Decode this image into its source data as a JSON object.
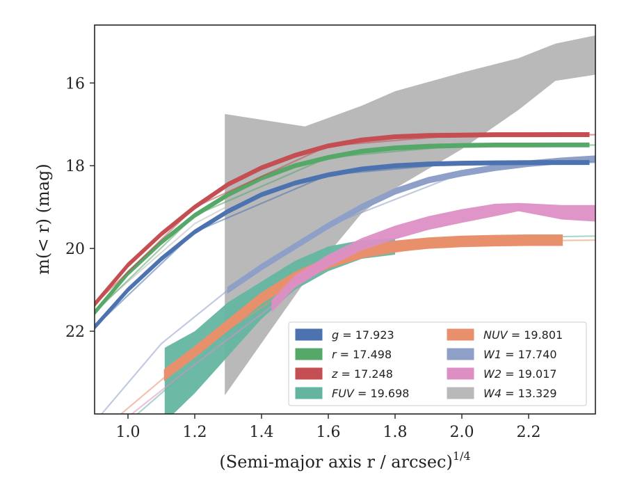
{
  "chart_data": {
    "type": "line",
    "xlabel": "(Semi-major axis r / arcsec)",
    "xlabel_sup": "1/4",
    "ylabel": "m(< r) (mag)",
    "xlim": [
      0.9,
      2.4
    ],
    "ylim": [
      24.0,
      14.6
    ],
    "y_inverted": true,
    "x_ticks": [
      1.0,
      1.2,
      1.4,
      1.6,
      1.8,
      2.0,
      2.2
    ],
    "x_tick_labels": [
      "1.0",
      "1.2",
      "1.4",
      "1.6",
      "1.8",
      "2.0",
      "2.2"
    ],
    "y_ticks": [
      16,
      18,
      20,
      22
    ],
    "y_tick_labels": [
      "16",
      "18",
      "20",
      "22"
    ],
    "legend_position": "lower-right",
    "series": [
      {
        "key": "g",
        "band": "g",
        "value_text": "= 17.923",
        "color": "#4c72b0",
        "x": [
          0.9,
          1.0,
          1.1,
          1.2,
          1.3,
          1.4,
          1.5,
          1.6,
          1.7,
          1.8,
          1.9,
          2.0,
          2.1,
          2.2,
          2.3,
          2.38
        ],
        "y": [
          21.9,
          21.0,
          20.25,
          19.6,
          19.1,
          18.7,
          18.42,
          18.22,
          18.08,
          18.0,
          17.96,
          17.94,
          17.93,
          17.925,
          17.923,
          17.923
        ],
        "model": [
          [
            0.9,
            21.9
          ],
          [
            1.2,
            19.6
          ],
          [
            1.6,
            18.22
          ],
          [
            2.0,
            17.94
          ],
          [
            2.4,
            17.92
          ]
        ],
        "band_width": 0.04
      },
      {
        "key": "r",
        "band": "r",
        "value_text": "= 17.498",
        "color": "#55a868",
        "x": [
          0.9,
          1.0,
          1.1,
          1.2,
          1.3,
          1.4,
          1.5,
          1.6,
          1.7,
          1.8,
          1.9,
          2.0,
          2.1,
          2.2,
          2.3,
          2.38
        ],
        "y": [
          21.55,
          20.6,
          19.85,
          19.2,
          18.7,
          18.3,
          18.0,
          17.8,
          17.65,
          17.57,
          17.53,
          17.51,
          17.5,
          17.5,
          17.498,
          17.498
        ],
        "model": [
          [
            0.9,
            21.55
          ],
          [
            1.2,
            19.2
          ],
          [
            1.6,
            17.8
          ],
          [
            2.0,
            17.51
          ],
          [
            2.4,
            17.5
          ]
        ],
        "band_width": 0.04
      },
      {
        "key": "z",
        "band": "z",
        "value_text": "= 17.248",
        "color": "#c44e52",
        "x": [
          0.9,
          1.0,
          1.1,
          1.2,
          1.3,
          1.4,
          1.5,
          1.6,
          1.7,
          1.8,
          1.9,
          2.0,
          2.1,
          2.2,
          2.3,
          2.38
        ],
        "y": [
          21.35,
          20.4,
          19.65,
          19.0,
          18.45,
          18.05,
          17.75,
          17.52,
          17.38,
          17.3,
          17.27,
          17.26,
          17.25,
          17.25,
          17.248,
          17.248
        ],
        "model": [
          [
            0.9,
            21.35
          ],
          [
            1.2,
            19.0
          ],
          [
            1.6,
            17.52
          ],
          [
            2.0,
            17.26
          ],
          [
            2.4,
            17.25
          ]
        ],
        "band_width": 0.04
      },
      {
        "key": "FUV",
        "band": "FUV",
        "value_text": "= 19.698",
        "color": "#64b5a0",
        "x": [
          1.11,
          1.2,
          1.3,
          1.4,
          1.5,
          1.6,
          1.7,
          1.8
        ],
        "y": [
          23.4,
          22.7,
          21.9,
          21.2,
          20.65,
          20.25,
          20.0,
          19.95
        ],
        "y_upper": [
          22.4,
          22.0,
          21.3,
          20.8,
          20.3,
          19.95,
          19.8,
          19.75
        ],
        "y_lower": [
          24.2,
          23.5,
          22.6,
          21.7,
          21.0,
          20.55,
          20.25,
          20.15
        ],
        "model": [
          [
            1.0,
            24.2
          ],
          [
            1.2,
            22.8
          ],
          [
            1.4,
            21.2
          ],
          [
            1.6,
            20.3
          ],
          [
            1.8,
            19.9
          ],
          [
            2.0,
            19.75
          ],
          [
            2.4,
            19.7
          ]
        ]
      },
      {
        "key": "NUV",
        "band": "NUV",
        "value_text": "= 19.801",
        "color": "#e8906c",
        "x": [
          1.11,
          1.2,
          1.3,
          1.4,
          1.5,
          1.6,
          1.7,
          1.8,
          1.9,
          2.0,
          2.1,
          2.2,
          2.3
        ],
        "y": [
          23.05,
          22.5,
          21.85,
          21.2,
          20.7,
          20.35,
          20.1,
          19.95,
          19.87,
          19.83,
          19.81,
          19.8,
          19.8
        ],
        "model": [
          [
            0.95,
            24.2
          ],
          [
            1.2,
            22.5
          ],
          [
            1.6,
            20.35
          ],
          [
            2.0,
            19.83
          ],
          [
            2.4,
            19.8
          ]
        ],
        "band_width": 0.12
      },
      {
        "key": "W1",
        "band": "W1",
        "value_text": "= 17.740",
        "color": "#8e9fc8",
        "x": [
          1.3,
          1.4,
          1.5,
          1.6,
          1.7,
          1.8,
          1.9,
          2.0,
          2.1,
          2.2,
          2.3,
          2.4
        ],
        "y": [
          21.0,
          20.45,
          19.95,
          19.45,
          19.0,
          18.62,
          18.35,
          18.18,
          18.05,
          17.95,
          17.88,
          17.83
        ],
        "model": [
          [
            0.9,
            24.2
          ],
          [
            1.1,
            22.3
          ],
          [
            1.3,
            21.0
          ],
          [
            1.6,
            19.45
          ],
          [
            2.0,
            18.18
          ],
          [
            2.4,
            17.83
          ]
        ],
        "band_width": 0.06
      },
      {
        "key": "W2",
        "band": "W2",
        "value_text": "= 19.017",
        "color": "#dd8fc4",
        "x": [
          1.43,
          1.5,
          1.6,
          1.7,
          1.8,
          1.9,
          2.0,
          2.1,
          2.17,
          2.3,
          2.4
        ],
        "y": [
          21.4,
          20.8,
          20.3,
          19.9,
          19.62,
          19.4,
          19.22,
          19.05,
          18.95,
          19.1,
          19.1
        ],
        "y_upper": [
          21.25,
          20.65,
          20.15,
          19.75,
          19.45,
          19.22,
          19.05,
          18.92,
          18.9,
          18.95,
          18.95
        ],
        "y_lower": [
          21.55,
          20.95,
          20.45,
          20.05,
          19.78,
          19.55,
          19.38,
          19.22,
          19.1,
          19.3,
          19.35
        ],
        "model": [
          [
            0.98,
            24.2
          ],
          [
            1.2,
            22.8
          ],
          [
            1.43,
            21.4
          ]
        ]
      },
      {
        "key": "W4",
        "band": "W4",
        "value_text": "= 13.329",
        "color": "#b9b9b9",
        "x": [
          1.29,
          1.53,
          1.7,
          1.8,
          2.0,
          2.17,
          2.28,
          2.4
        ],
        "y_upper": [
          16.75,
          17.05,
          16.55,
          16.2,
          15.75,
          15.4,
          15.05,
          14.85
        ],
        "y_lower": [
          23.55,
          20.8,
          19.15,
          18.55,
          17.6,
          16.65,
          15.95,
          15.8
        ],
        "model": [
          [
            0.9,
            21.5
          ],
          [
            1.2,
            19.4
          ],
          [
            1.4,
            18.55
          ],
          [
            1.6,
            17.85
          ],
          [
            1.8,
            17.2
          ],
          [
            2.0,
            16.55
          ],
          [
            2.2,
            15.9
          ],
          [
            2.4,
            15.3
          ]
        ]
      }
    ]
  }
}
